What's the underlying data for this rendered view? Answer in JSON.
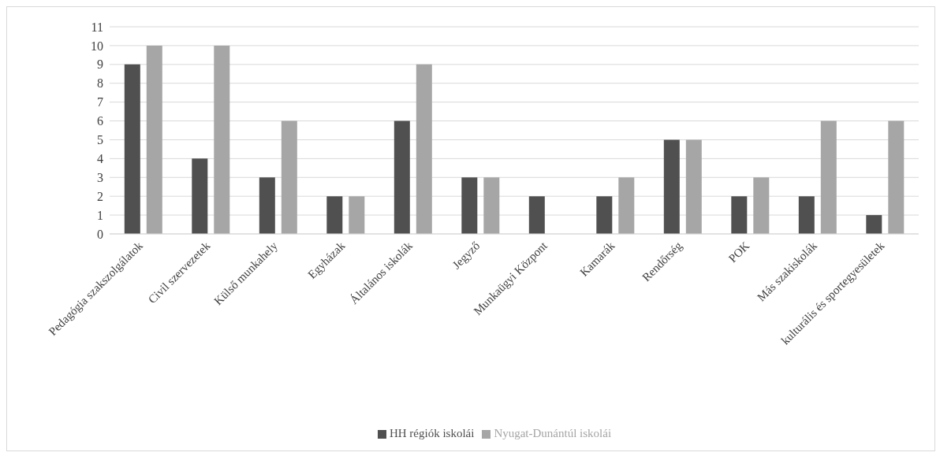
{
  "chart_data": {
    "type": "bar",
    "categories": [
      "Pedagógia szakszolgálatok",
      "Civil szervezetek",
      "Külső munkahely",
      "Egyházak",
      "Általános iskolák",
      "Jegyző",
      "Munkaügyi Központ",
      "Kamarák",
      "Rendőrség",
      "POK",
      "Más szakiskolák",
      "kulturális és sportegyesületek"
    ],
    "series": [
      {
        "name": "HH régiók iskolái",
        "color": "#505050",
        "values": [
          9,
          4,
          3,
          2,
          6,
          3,
          2,
          2,
          5,
          2,
          2,
          1
        ]
      },
      {
        "name": "Nyugat-Dunántúl iskolái",
        "color": "#a6a6a6",
        "values": [
          10,
          10,
          6,
          2,
          9,
          3,
          0,
          3,
          5,
          3,
          6,
          6
        ]
      }
    ],
    "ylim": [
      0,
      11
    ],
    "yticks": [
      0,
      1,
      2,
      3,
      4,
      5,
      6,
      7,
      8,
      9,
      10,
      11
    ],
    "grid": "y",
    "legend": "bottom"
  }
}
